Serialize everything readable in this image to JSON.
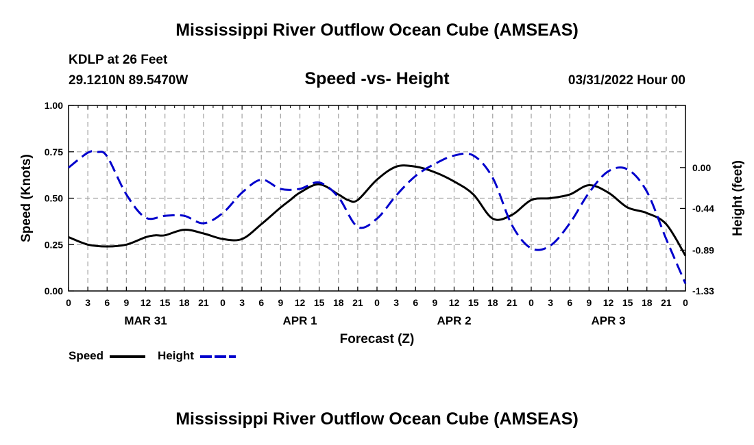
{
  "page": {
    "title": "Mississippi River Outflow Ocean Cube (AMSEAS)",
    "bottom_title": "Mississippi River Outflow Ocean Cube (AMSEAS)",
    "station": "KDLP at 26 Feet",
    "coords": "29.1210N  89.5470W",
    "subtitle": "Speed -vs- Height",
    "date": "03/31/2022 Hour 00"
  },
  "colors": {
    "speed": "#000000",
    "height": "#0000cc",
    "grid": "#a8a8a8"
  },
  "chart_data": {
    "type": "line",
    "xlabel": "Forecast (Z)",
    "ylabel_left": "Speed (Knots)",
    "ylabel_right": "Height (feet)",
    "xlim": [
      0,
      96
    ],
    "ylim_left": [
      0,
      1
    ],
    "ylim_right": [
      -1.33,
      0.67
    ],
    "x_tick_labels": [
      "0",
      "3",
      "6",
      "9",
      "12",
      "15",
      "18",
      "21",
      "0",
      "3",
      "6",
      "9",
      "12",
      "15",
      "18",
      "21",
      "0",
      "3",
      "6",
      "9",
      "12",
      "15",
      "18",
      "21",
      "0",
      "3",
      "6",
      "9",
      "12",
      "15",
      "18",
      "21",
      "0"
    ],
    "day_labels": [
      {
        "label": "MAR 31",
        "x": 12
      },
      {
        "label": "APR 1",
        "x": 36
      },
      {
        "label": "APR 2",
        "x": 60
      },
      {
        "label": "APR 3",
        "x": 84
      }
    ],
    "y_left_ticks": [
      "0.00",
      "0.25",
      "0.50",
      "0.75",
      "1.00"
    ],
    "y_right_ticks": [
      {
        "label": "0.00",
        "value": 0.0
      },
      {
        "label": "-0.44",
        "value": -0.44
      },
      {
        "label": "-0.89",
        "value": -0.89
      },
      {
        "label": "-1.33",
        "value": -1.33
      }
    ],
    "legend": [
      {
        "name": "Speed",
        "style": "solid"
      },
      {
        "name": "Height",
        "style": "dashed"
      }
    ],
    "series": [
      {
        "name": "Speed",
        "axis": "left",
        "x": [
          0,
          3,
          6,
          9,
          12,
          13.5,
          15,
          18,
          21,
          24,
          27,
          30,
          33,
          34.5,
          36,
          39,
          42,
          43.5,
          45,
          48,
          51,
          54,
          57,
          60,
          63,
          66,
          69,
          72,
          75,
          78,
          81,
          84,
          87,
          90,
          93,
          96
        ],
        "y": [
          0.29,
          0.25,
          0.24,
          0.25,
          0.29,
          0.3,
          0.3,
          0.33,
          0.31,
          0.28,
          0.28,
          0.36,
          0.45,
          0.49,
          0.53,
          0.575,
          0.52,
          0.49,
          0.49,
          0.6,
          0.67,
          0.67,
          0.64,
          0.59,
          0.52,
          0.39,
          0.41,
          0.49,
          0.5,
          0.52,
          0.57,
          0.53,
          0.45,
          0.42,
          0.36,
          0.19
        ]
      },
      {
        "name": "Height",
        "axis": "right",
        "x": [
          0,
          3,
          4.5,
          6,
          9,
          12,
          15,
          18,
          21,
          24,
          27,
          30,
          33,
          36,
          39,
          42,
          45,
          48,
          51,
          54,
          57,
          60,
          63,
          66,
          69,
          72,
          75,
          78,
          81,
          84,
          87,
          90,
          93,
          96
        ],
        "y": [
          0.0,
          0.16,
          0.17,
          0.12,
          -0.29,
          -0.54,
          -0.52,
          -0.52,
          -0.6,
          -0.49,
          -0.27,
          -0.13,
          -0.23,
          -0.23,
          -0.16,
          -0.32,
          -0.64,
          -0.55,
          -0.3,
          -0.09,
          0.04,
          0.13,
          0.13,
          -0.11,
          -0.62,
          -0.87,
          -0.84,
          -0.6,
          -0.27,
          -0.04,
          -0.02,
          -0.26,
          -0.77,
          -1.25
        ]
      }
    ]
  }
}
